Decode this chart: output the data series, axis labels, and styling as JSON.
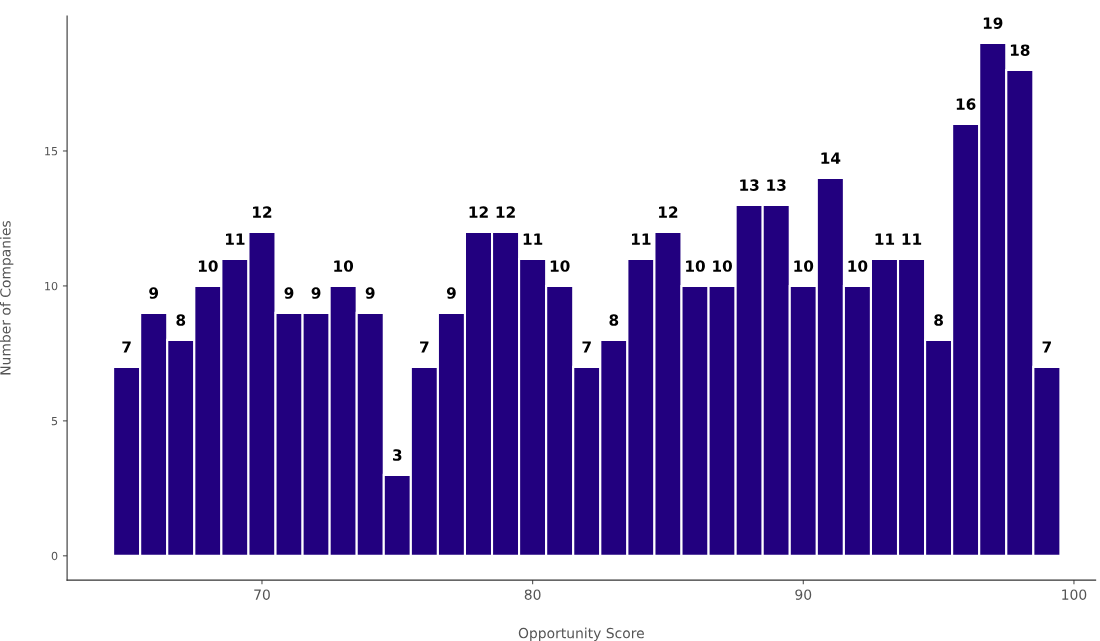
{
  "chart_data": {
    "type": "histogram",
    "xlabel": "Opportunity Score",
    "ylabel": "Number of Companies",
    "bins": [
      64.5,
      65.5,
      66.5,
      67.5,
      68.5,
      69.5,
      70.5,
      71.5,
      72.5,
      73.5,
      74.5,
      75.5,
      76.5,
      77.5,
      78.5,
      79.5,
      80.5,
      81.5,
      82.5,
      83.5,
      84.5,
      85.5,
      86.5,
      87.5,
      88.5,
      89.5,
      90.5,
      91.5,
      92.5,
      93.5,
      94.5,
      95.5,
      96.5,
      97.5,
      98.5,
      99.5
    ],
    "values": [
      7,
      9,
      8,
      10,
      11,
      12,
      9,
      9,
      10,
      9,
      3,
      7,
      9,
      12,
      12,
      11,
      10,
      7,
      8,
      11,
      12,
      10,
      10,
      13,
      13,
      10,
      14,
      10,
      11,
      11,
      8,
      16,
      19,
      18,
      7
    ],
    "color": "#22007f",
    "xlim": [
      62.8,
      100.8
    ],
    "xticks": [
      70,
      80,
      90,
      100
    ],
    "ylim": [
      -0.9,
      20
    ],
    "yticks": [
      0,
      5,
      10,
      15
    ],
    "data_labels": true,
    "grid": false
  }
}
